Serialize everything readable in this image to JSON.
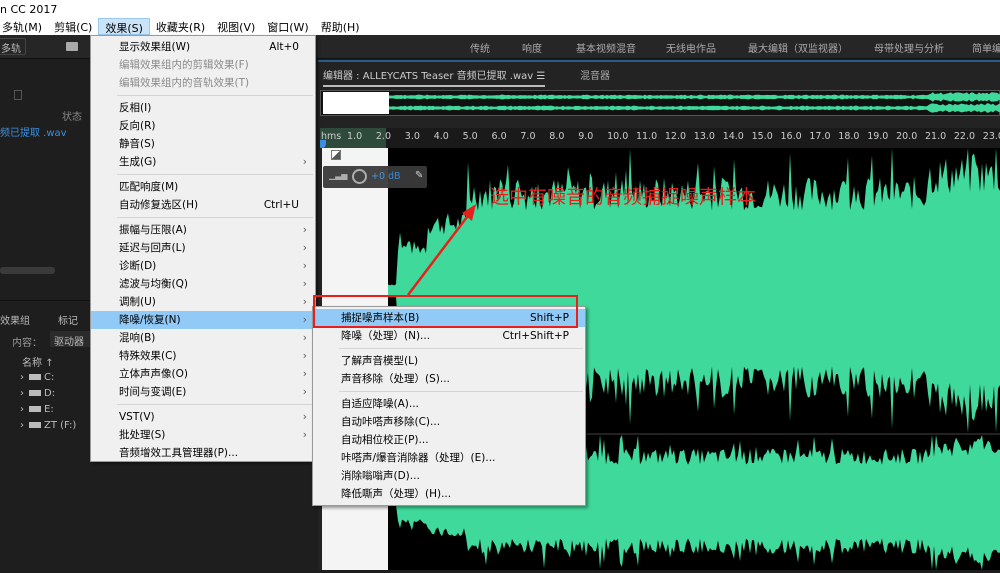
{
  "app_title": "n CC 2017",
  "menubar": [
    "多轨(M)",
    "剪辑(C)",
    "效果(S)",
    "收藏夹(R)",
    "视图(V)",
    "窗口(W)",
    "帮助(H)"
  ],
  "toolbar": {
    "multitrack": "多轨"
  },
  "workspaces": [
    "传统",
    "响度",
    "基本视频混音",
    "无线电作品",
    "最大编辑（双监视器）",
    "母带处理与分析",
    "简单编"
  ],
  "editor": {
    "tab_label": "编辑器 : ALLEYCATS Teaser 音频已提取 .wav",
    "mixer_tab": "混音器",
    "gain": "+0 dB",
    "ruler_unit": "hms",
    "ruler_ticks": [
      "1.0",
      "2.0",
      "3.0",
      "4.0",
      "5.0",
      "6.0",
      "7.0",
      "8.0",
      "9.0",
      "10.0",
      "11.0",
      "12.0",
      "13.0",
      "14.0",
      "15.0",
      "16.0",
      "17.0",
      "18.0",
      "19.0",
      "20.0",
      "21.0",
      "22.0",
      "23.0"
    ],
    "wave_color": "#3fd99b"
  },
  "files_panel": {
    "status_header": "状态",
    "file": "频已提取 .wav"
  },
  "media_panel": {
    "tabs": [
      "效果组",
      "标记"
    ],
    "content_label": "内容：",
    "content_value": "驱动器",
    "name_header": "名称",
    "drives": [
      "C:",
      "D:",
      "E:",
      "ZT (F:)"
    ]
  },
  "effects_menu": [
    {
      "label": "显示效果组(W)",
      "shortcut": "Alt+0"
    },
    {
      "label": "编辑效果组内的剪辑效果(F)",
      "disabled": true
    },
    {
      "label": "编辑效果组内的音轨效果(T)",
      "disabled": true
    },
    {
      "sep": true
    },
    {
      "label": "反相(I)"
    },
    {
      "label": "反向(R)"
    },
    {
      "label": "静音(S)"
    },
    {
      "label": "生成(G)",
      "submenu": true
    },
    {
      "sep": true
    },
    {
      "label": "匹配响度(M)"
    },
    {
      "label": "自动修复选区(H)",
      "shortcut": "Ctrl+U"
    },
    {
      "sep": true
    },
    {
      "label": "振幅与压限(A)",
      "submenu": true
    },
    {
      "label": "延迟与回声(L)",
      "submenu": true
    },
    {
      "label": "诊断(D)",
      "submenu": true
    },
    {
      "label": "滤波与均衡(Q)",
      "submenu": true
    },
    {
      "label": "调制(U)",
      "submenu": true
    },
    {
      "label": "降噪/恢复(N)",
      "submenu": true,
      "highlighted": true
    },
    {
      "label": "混响(B)",
      "submenu": true
    },
    {
      "label": "特殊效果(C)",
      "submenu": true
    },
    {
      "label": "立体声声像(O)",
      "submenu": true
    },
    {
      "label": "时间与变调(E)",
      "submenu": true
    },
    {
      "sep": true
    },
    {
      "label": "VST(V)",
      "submenu": true
    },
    {
      "label": "批处理(S)",
      "submenu": true
    },
    {
      "label": "音频增效工具管理器(P)..."
    }
  ],
  "noise_submenu": [
    {
      "label": "捕捉噪声样本(B)",
      "shortcut": "Shift+P",
      "highlighted": true
    },
    {
      "label": "降噪（处理）(N)...",
      "shortcut": "Ctrl+Shift+P"
    },
    {
      "sep": true
    },
    {
      "label": "了解声音模型(L)"
    },
    {
      "label": "声音移除（处理）(S)..."
    },
    {
      "sep": true
    },
    {
      "label": "自适应降噪(A)..."
    },
    {
      "label": "自动咔嗒声移除(C)..."
    },
    {
      "label": "自动相位校正(P)..."
    },
    {
      "label": "咔嗒声/爆音消除器（处理）(E)..."
    },
    {
      "label": "消除嗡嗡声(D)..."
    },
    {
      "label": "降低嘶声（处理）(H)..."
    }
  ],
  "annotation": {
    "text": "选中有噪音的音频捕捉噪声样本",
    "color": "#e8201c"
  }
}
